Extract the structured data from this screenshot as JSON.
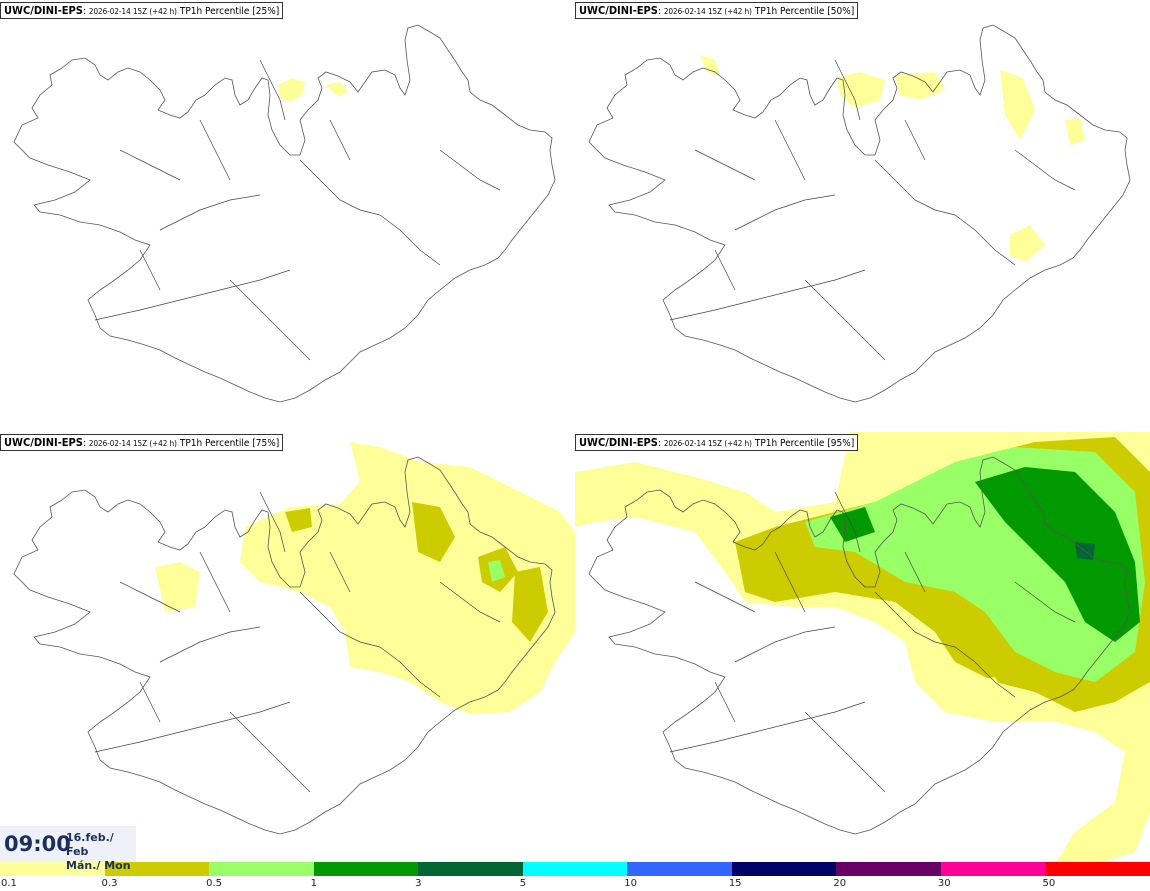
{
  "panels": [
    {
      "source": "UWC/DINI-EPS",
      "sep": ":",
      "run": "2026-02-14 15Z (+42 h)",
      "label": "TP1h Percentile [25%]"
    },
    {
      "source": "UWC/DINI-EPS",
      "sep": ":",
      "run": "2026-02-14 15Z (+42 h)",
      "label": "TP1h Percentile [50%]"
    },
    {
      "source": "UWC/DINI-EPS",
      "sep": ":",
      "run": "2026-02-14 15Z (+42 h)",
      "label": "TP1h Percentile [75%]"
    },
    {
      "source": "UWC/DINI-EPS",
      "sep": ":",
      "run": "2026-02-14 15Z (+42 h)",
      "label": "TP1h Percentile [95%]"
    }
  ],
  "valid_time": {
    "time": "09:00",
    "date_line1": "16.feb./ Feb",
    "date_line2": "Mán./ Mon"
  },
  "legend": {
    "colors": [
      "#ffff99",
      "#cccc00",
      "#99ff66",
      "#009900",
      "#006633",
      "#00ffff",
      "#3366ff",
      "#000066",
      "#660066",
      "#ff0099",
      "#ff0000"
    ],
    "ticks": [
      "0.1",
      "0.3",
      "0.5",
      "1",
      "3",
      "5",
      "10",
      "15",
      "20",
      "30",
      "50"
    ]
  }
}
